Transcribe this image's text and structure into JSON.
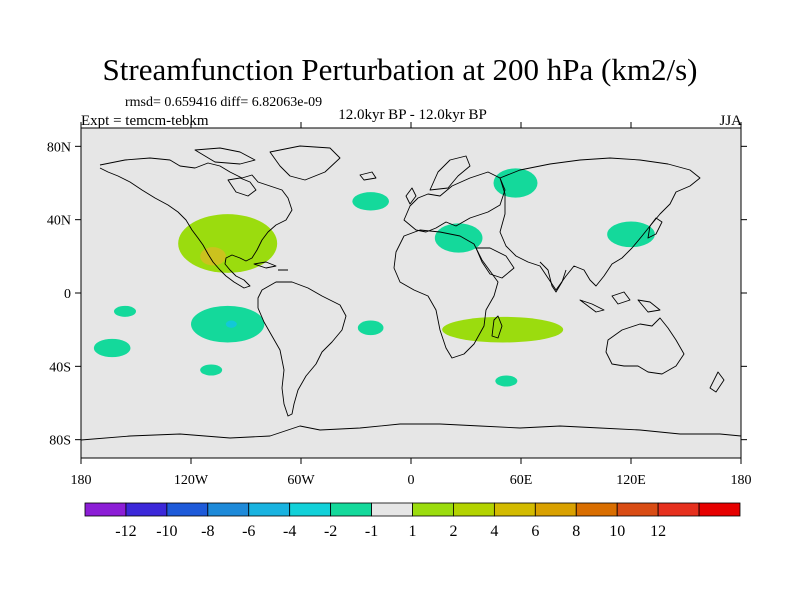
{
  "header": {
    "title": "Streamfunction Perturbation at 200 hPa (km2/s)",
    "stats": "rmsd= 0.659416 diff= 6.82063e-09",
    "subtitle": "12.0kyr BP - 12.0kyr BP",
    "experiment": "Expt = temcm-tebkm",
    "season": "JJA"
  },
  "map": {
    "lon_range": [
      -180,
      180
    ],
    "lat_range": [
      -90,
      90
    ],
    "lat_ticks": [
      {
        "value": 80,
        "label": "80N"
      },
      {
        "value": 40,
        "label": "40N"
      },
      {
        "value": 0,
        "label": "0"
      },
      {
        "value": -40,
        "label": "40S"
      },
      {
        "value": -80,
        "label": "80S"
      }
    ],
    "lon_ticks": [
      {
        "value": -180,
        "label": "180"
      },
      {
        "value": -120,
        "label": "120W"
      },
      {
        "value": -60,
        "label": "60W"
      },
      {
        "value": 0,
        "label": "0"
      },
      {
        "value": 60,
        "label": "60E"
      },
      {
        "value": 120,
        "label": "120E"
      },
      {
        "value": 180,
        "label": "180"
      }
    ],
    "background_color": "#e6e6e6",
    "coast_color": "#000000",
    "anomalies": [
      {
        "name": "n-america-positive",
        "sign": "positive",
        "level": 1,
        "color": "#9bdc0e",
        "lon": -100,
        "lat": 27,
        "rlon": 27,
        "rlat": 16
      },
      {
        "name": "mexico-positive-core",
        "sign": "positive",
        "level": 2,
        "color": "#cbc21e",
        "lon": -108,
        "lat": 20,
        "rlon": 7,
        "rlat": 5
      },
      {
        "name": "n-atlantic-negative",
        "sign": "negative",
        "level": 1,
        "color": "#14d99b",
        "lon": -22,
        "lat": 50,
        "rlon": 10,
        "rlat": 5
      },
      {
        "name": "siberia-negative",
        "sign": "negative",
        "level": 1,
        "color": "#14d99b",
        "lon": 57,
        "lat": 60,
        "rlon": 12,
        "rlat": 8
      },
      {
        "name": "mideast-negative",
        "sign": "negative",
        "level": 1,
        "color": "#14d99b",
        "lon": 26,
        "lat": 30,
        "rlon": 13,
        "rlat": 8
      },
      {
        "name": "east-asia-negative",
        "sign": "negative",
        "level": 1,
        "color": "#14d99b",
        "lon": 120,
        "lat": 32,
        "rlon": 13,
        "rlat": 7
      },
      {
        "name": "s-pacific-negative",
        "sign": "negative",
        "level": 1,
        "color": "#14d99b",
        "lon": -100,
        "lat": -17,
        "rlon": 20,
        "rlat": 10
      },
      {
        "name": "s-pacific-negative-core",
        "sign": "negative",
        "level": 2,
        "color": "#12c8d8",
        "lon": -98,
        "lat": -17,
        "rlon": 3,
        "rlat": 2
      },
      {
        "name": "w-pacific-negative-small",
        "sign": "negative",
        "level": 1,
        "color": "#14d99b",
        "lon": -156,
        "lat": -10,
        "rlon": 6,
        "rlat": 3
      },
      {
        "name": "sw-pacific-negative",
        "sign": "negative",
        "level": 1,
        "color": "#14d99b",
        "lon": -163,
        "lat": -30,
        "rlon": 10,
        "rlat": 5
      },
      {
        "name": "s-pacific-negative-small",
        "sign": "negative",
        "level": 1,
        "color": "#14d99b",
        "lon": -109,
        "lat": -42,
        "rlon": 6,
        "rlat": 3
      },
      {
        "name": "s-atlantic-negative",
        "sign": "negative",
        "level": 1,
        "color": "#14d99b",
        "lon": -22,
        "lat": -19,
        "rlon": 7,
        "rlat": 4
      },
      {
        "name": "s-indian-negative",
        "sign": "negative",
        "level": 1,
        "color": "#14d99b",
        "lon": 52,
        "lat": -48,
        "rlon": 6,
        "rlat": 3
      },
      {
        "name": "s-africa-positive",
        "sign": "positive",
        "level": 1,
        "color": "#9bdc0e",
        "lon": 50,
        "lat": -20,
        "rlon": 33,
        "rlat": 7
      }
    ]
  },
  "colorbar": {
    "colors": [
      "#8c1ed6",
      "#3c28d9",
      "#1e5ad9",
      "#1e8ad9",
      "#19b3e0",
      "#12d1d9",
      "#14d99b",
      "#e6e6e6",
      "#9bdc0e",
      "#b3d300",
      "#d3bb00",
      "#d9a100",
      "#d96e00",
      "#d94c14",
      "#e6301e",
      "#e60000"
    ],
    "labels": [
      "-12",
      "-10",
      "-8",
      "-6",
      "-4",
      "-2",
      "-1",
      "1",
      "2",
      "4",
      "6",
      "8",
      "10",
      "12"
    ]
  }
}
